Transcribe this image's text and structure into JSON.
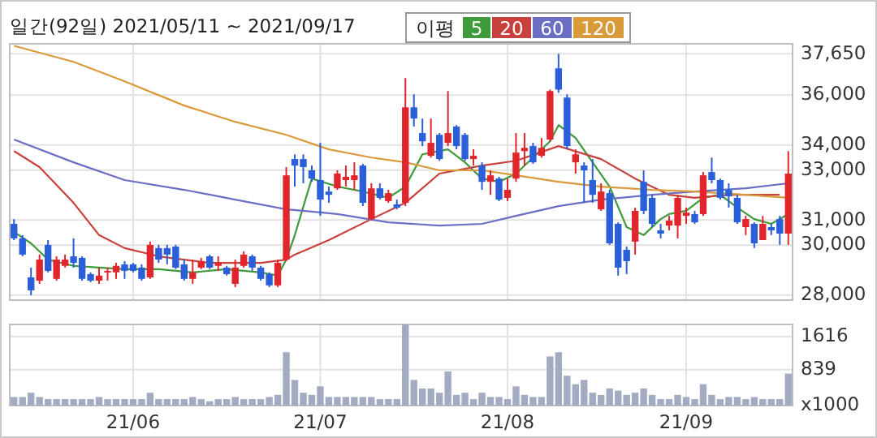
{
  "chart_data": [
    {
      "type": "candlestick",
      "title": "일간(92일) 2021/05/11 ~ 2021/09/17",
      "legend_title": "이평",
      "legend": "top right",
      "grid": true,
      "tick_labels": "y",
      "categories": [
        null,
        null,
        null,
        null,
        null,
        null,
        null,
        null,
        null,
        null,
        null,
        null,
        null,
        null,
        null,
        null,
        null,
        null,
        null,
        null,
        null,
        null,
        null,
        null,
        null,
        null,
        null,
        null,
        null,
        null,
        null,
        null,
        null,
        null,
        null,
        null,
        null,
        null,
        null,
        null,
        null,
        null,
        null,
        null,
        null,
        null,
        null,
        null,
        null,
        null,
        null,
        null,
        null,
        null,
        null,
        null,
        null,
        null,
        null,
        null,
        null,
        null,
        null,
        null,
        null,
        null,
        null,
        null,
        null,
        null,
        null,
        null,
        null,
        null,
        null,
        null,
        null,
        null,
        null,
        null,
        null,
        null,
        null,
        null,
        null,
        null,
        null,
        null,
        null,
        null,
        null,
        null
      ],
      "ylim": [
        27800,
        38050
      ],
      "yticks": [
        {
          "value": 37650,
          "label": "37,650"
        },
        {
          "value": 36000,
          "label": "36,000"
        },
        {
          "value": 34000,
          "label": "34,000"
        },
        {
          "value": 33000,
          "label": "33,000"
        },
        {
          "value": 31000,
          "label": "31,000"
        },
        {
          "value": 30000,
          "label": "30,000"
        },
        {
          "value": 28000,
          "label": "28,000"
        }
      ],
      "ohlc": [
        [
          30850,
          31040,
          30200,
          30270
        ],
        [
          30270,
          30400,
          29550,
          29620
        ],
        [
          28710,
          29100,
          28000,
          28190
        ],
        [
          28580,
          29620,
          28450,
          29420
        ],
        [
          30010,
          30200,
          28910,
          28970
        ],
        [
          28650,
          29550,
          28580,
          29420
        ],
        [
          29170,
          29620,
          29100,
          29420
        ],
        [
          29550,
          30270,
          29100,
          29290
        ],
        [
          29490,
          29550,
          28580,
          28650
        ],
        [
          28840,
          28910,
          28520,
          28580
        ],
        [
          28580,
          29100,
          28450,
          28780
        ],
        [
          28910,
          29100,
          28580,
          28970
        ],
        [
          28910,
          29290,
          28650,
          29170
        ],
        [
          29230,
          29360,
          28650,
          28970
        ],
        [
          29230,
          29290,
          28910,
          28970
        ],
        [
          29100,
          29230,
          28580,
          28650
        ],
        [
          28710,
          30140,
          28650,
          30010
        ],
        [
          29880,
          30010,
          29290,
          29420
        ],
        [
          29880,
          30010,
          29230,
          29620
        ],
        [
          29940,
          30010,
          29040,
          29100
        ],
        [
          29230,
          29420,
          28580,
          28650
        ],
        [
          28650,
          29420,
          28450,
          28910
        ],
        [
          29100,
          29490,
          29040,
          29360
        ],
        [
          29550,
          29620,
          29040,
          29100
        ],
        [
          29170,
          29550,
          28970,
          29290
        ],
        [
          29100,
          29170,
          28780,
          28840
        ],
        [
          28450,
          29420,
          28320,
          29100
        ],
        [
          29170,
          29750,
          29100,
          29620
        ],
        [
          29550,
          29620,
          28970,
          29100
        ],
        [
          29100,
          29170,
          28580,
          28650
        ],
        [
          28840,
          28910,
          28320,
          28390
        ],
        [
          28390,
          29420,
          28320,
          29290
        ],
        [
          29420,
          33120,
          29360,
          32790
        ],
        [
          33440,
          33630,
          32340,
          33180
        ],
        [
          33440,
          33630,
          32470,
          33120
        ],
        [
          32990,
          33180,
          32530,
          32660
        ],
        [
          32600,
          34090,
          31170,
          31820
        ],
        [
          32140,
          32340,
          31690,
          32010
        ],
        [
          32270,
          32990,
          32210,
          32860
        ],
        [
          32600,
          33180,
          32340,
          32730
        ],
        [
          32600,
          33310,
          32210,
          32790
        ],
        [
          33180,
          33250,
          31560,
          31690
        ],
        [
          31040,
          32470,
          30980,
          32270
        ],
        [
          32270,
          32470,
          31820,
          31890
        ],
        [
          31760,
          32210,
          31690,
          32080
        ],
        [
          31630,
          31820,
          31430,
          31500
        ],
        [
          31690,
          36680,
          31560,
          35510
        ],
        [
          35510,
          36030,
          34740,
          35060
        ],
        [
          34480,
          35060,
          33960,
          34150
        ],
        [
          33570,
          35060,
          33500,
          34090
        ],
        [
          34410,
          34480,
          33370,
          33440
        ],
        [
          34090,
          36160,
          33960,
          34480
        ],
        [
          34740,
          34800,
          33830,
          33960
        ],
        [
          34410,
          34480,
          33370,
          33440
        ],
        [
          33440,
          33830,
          33180,
          33570
        ],
        [
          33180,
          33310,
          32210,
          32530
        ],
        [
          32530,
          32990,
          32010,
          32790
        ],
        [
          32660,
          32730,
          31760,
          31820
        ],
        [
          31890,
          32660,
          31760,
          32210
        ],
        [
          32660,
          34480,
          32530,
          33700
        ],
        [
          33760,
          34480,
          33180,
          33890
        ],
        [
          33960,
          34090,
          33250,
          33310
        ],
        [
          33570,
          34280,
          33500,
          33890
        ],
        [
          34220,
          36220,
          34150,
          36160
        ],
        [
          37070,
          37650,
          36090,
          36220
        ],
        [
          35900,
          36030,
          33830,
          33960
        ],
        [
          33310,
          33830,
          32860,
          33630
        ],
        [
          33180,
          33310,
          31690,
          32990
        ],
        [
          32600,
          33440,
          31690,
          32010
        ],
        [
          31430,
          32470,
          31370,
          32140
        ],
        [
          32080,
          32210,
          30010,
          30070
        ],
        [
          30850,
          30910,
          28780,
          29100
        ],
        [
          29810,
          29940,
          28840,
          29360
        ],
        [
          30140,
          31500,
          29620,
          31370
        ],
        [
          32530,
          32990,
          31240,
          31370
        ],
        [
          31890,
          32010,
          30720,
          30850
        ],
        [
          30590,
          30850,
          30270,
          30460
        ],
        [
          30780,
          31170,
          30590,
          30980
        ],
        [
          30780,
          32010,
          30270,
          31890
        ],
        [
          31170,
          31500,
          30850,
          31300
        ],
        [
          31240,
          31370,
          30850,
          30910
        ],
        [
          31240,
          32920,
          31170,
          32790
        ],
        [
          32920,
          33500,
          32470,
          32600
        ],
        [
          32600,
          32660,
          31820,
          31890
        ],
        [
          32210,
          32470,
          31500,
          31950
        ],
        [
          31890,
          32010,
          30850,
          30910
        ],
        [
          30720,
          31170,
          30400,
          31040
        ],
        [
          30850,
          30910,
          29880,
          30070
        ],
        [
          30200,
          31170,
          30200,
          30850
        ],
        [
          30720,
          30850,
          30400,
          30590
        ],
        [
          31040,
          31170,
          30010,
          30460
        ],
        [
          30460,
          33760,
          30010,
          32860
        ]
      ],
      "colors": [
        "#2b5fd9",
        "#2b5fd9",
        "#2b5fd9",
        "#e0262c",
        "#2b5fd9",
        "#e0262c",
        "#e0262c",
        "#2b5fd9",
        "#2b5fd9",
        "#2b5fd9",
        "#e0262c",
        "#e0262c",
        "#e0262c",
        "#2b5fd9",
        "#2b5fd9",
        "#2b5fd9",
        "#e0262c",
        "#2b5fd9",
        "#2b5fd9",
        "#2b5fd9",
        "#2b5fd9",
        "#e0262c",
        "#e0262c",
        "#2b5fd9",
        "#e0262c",
        "#2b5fd9",
        "#e0262c",
        "#e0262c",
        "#2b5fd9",
        "#2b5fd9",
        "#2b5fd9",
        "#e0262c",
        "#e0262c",
        "#2b5fd9",
        "#2b5fd9",
        "#2b5fd9",
        "#2b5fd9",
        "#2b5fd9",
        "#e0262c",
        "#e0262c",
        "#e0262c",
        "#2b5fd9",
        "#e0262c",
        "#2b5fd9",
        "#e0262c",
        "#2b5fd9",
        "#e0262c",
        "#2b5fd9",
        "#2b5fd9",
        "#e0262c",
        "#2b5fd9",
        "#e0262c",
        "#2b5fd9",
        "#2b5fd9",
        "#e0262c",
        "#2b5fd9",
        "#e0262c",
        "#2b5fd9",
        "#e0262c",
        "#e0262c",
        "#e0262c",
        "#2b5fd9",
        "#e0262c",
        "#e0262c",
        "#2b5fd9",
        "#2b5fd9",
        "#e0262c",
        "#2b5fd9",
        "#2b5fd9",
        "#e0262c",
        "#2b5fd9",
        "#2b5fd9",
        "#2b5fd9",
        "#e0262c",
        "#2b5fd9",
        "#2b5fd9",
        "#2b5fd9",
        "#e0262c",
        "#e0262c",
        "#e0262c",
        "#2b5fd9",
        "#e0262c",
        "#2b5fd9",
        "#2b5fd9",
        "#2b5fd9",
        "#2b5fd9",
        "#e0262c",
        "#2b5fd9",
        "#e0262c",
        "#2b5fd9",
        "#2b5fd9",
        "#e0262c"
      ],
      "series": [
        {
          "name": "5",
          "type": "line",
          "color": "#3f9a3a",
          "values": [
            30530,
            null,
            30070,
            null,
            29420,
            null,
            null,
            29170,
            null,
            null,
            29100,
            null,
            null,
            29040,
            null,
            null,
            null,
            29040,
            null,
            null,
            null,
            28910,
            null,
            null,
            null,
            29040,
            null,
            null,
            null,
            28910,
            null,
            28780,
            29420,
            30400,
            null,
            32660,
            null,
            null,
            32340,
            null,
            null,
            32140,
            null,
            null,
            31890,
            null,
            32340,
            null,
            33630,
            null,
            null,
            33830,
            null,
            33310,
            null,
            32660,
            null,
            32530,
            null,
            32860,
            null,
            33500,
            null,
            34150,
            34800,
            null,
            34280,
            null,
            33310,
            null,
            32340,
            null,
            30720,
            null,
            30400,
            null,
            31040,
            31240,
            null,
            31370,
            null,
            31890,
            null,
            32010,
            null,
            31500,
            null,
            31040,
            null,
            30850,
            null,
            31240
          ]
        },
        {
          "name": "20",
          "type": "line",
          "color": "#c9413c",
          "values": [
            33760,
            null,
            null,
            33120,
            null,
            null,
            null,
            31690,
            null,
            null,
            30400,
            null,
            null,
            29880,
            null,
            null,
            null,
            29550,
            null,
            null,
            null,
            null,
            null,
            29290,
            null,
            null,
            null,
            null,
            null,
            29290,
            null,
            null,
            29420,
            29620,
            null,
            null,
            null,
            30200,
            null,
            null,
            null,
            null,
            31040,
            null,
            null,
            null,
            31690,
            null,
            null,
            null,
            32860,
            null,
            null,
            null,
            null,
            33180,
            null,
            null,
            null,
            33370,
            null,
            null,
            null,
            null,
            33960,
            null,
            null,
            null,
            null,
            33440,
            null,
            null,
            null,
            32660,
            null,
            null,
            null,
            32010,
            null,
            null,
            31890,
            null,
            null,
            null,
            32010,
            null,
            null,
            null,
            32010,
            null,
            32010,
            null
          ]
        },
        {
          "name": "60",
          "type": "line",
          "color": "#6a6fc4",
          "values": [
            34220,
            null,
            null,
            null,
            null,
            null,
            null,
            33310,
            null,
            null,
            null,
            null,
            null,
            32600,
            null,
            null,
            null,
            null,
            null,
            null,
            32210,
            null,
            null,
            null,
            null,
            null,
            31820,
            null,
            null,
            null,
            null,
            null,
            31430,
            null,
            31370,
            null,
            null,
            null,
            31240,
            null,
            null,
            null,
            null,
            null,
            30910,
            null,
            null,
            null,
            null,
            null,
            30780,
            null,
            null,
            null,
            null,
            30850,
            null,
            null,
            null,
            31170,
            null,
            null,
            null,
            null,
            31560,
            null,
            null,
            null,
            null,
            31820,
            null,
            null,
            null,
            null,
            null,
            32010,
            null,
            null,
            null,
            null,
            32140,
            null,
            null,
            null,
            null,
            null,
            32270,
            null,
            null,
            null,
            null,
            32470
          ]
        },
        {
          "name": "120",
          "type": "line",
          "color": "#d99a3a",
          "values": [
            37970,
            null,
            null,
            null,
            null,
            null,
            null,
            37330,
            null,
            null,
            null,
            null,
            null,
            36550,
            null,
            null,
            null,
            null,
            null,
            null,
            35580,
            null,
            null,
            null,
            null,
            null,
            34930,
            null,
            null,
            null,
            null,
            null,
            34410,
            null,
            null,
            null,
            null,
            33830,
            null,
            null,
            null,
            null,
            33500,
            null,
            null,
            null,
            33310,
            null,
            null,
            null,
            32990,
            null,
            null,
            null,
            null,
            32990,
            null,
            null,
            null,
            32790,
            null,
            null,
            null,
            null,
            32530,
            null,
            null,
            null,
            null,
            32340,
            null,
            null,
            null,
            null,
            null,
            32210,
            null,
            null,
            null,
            null,
            32140,
            null,
            null,
            null,
            null,
            null,
            32010,
            null,
            null,
            null,
            null,
            31890
          ]
        }
      ]
    },
    {
      "type": "bar",
      "grid": true,
      "color": "#a3abc2",
      "categories": [
        null,
        null,
        null,
        null,
        null,
        null,
        null,
        null,
        null,
        null,
        null,
        null,
        null,
        null,
        "21/06",
        null,
        null,
        null,
        null,
        null,
        null,
        null,
        null,
        null,
        null,
        null,
        null,
        null,
        null,
        null,
        null,
        null,
        null,
        null,
        null,
        null,
        "21/07",
        null,
        null,
        null,
        null,
        null,
        null,
        null,
        null,
        null,
        null,
        null,
        null,
        null,
        null,
        null,
        null,
        null,
        null,
        null,
        null,
        null,
        "21/08",
        null,
        null,
        null,
        null,
        null,
        null,
        null,
        null,
        null,
        null,
        null,
        null,
        null,
        null,
        null,
        null,
        null,
        null,
        null,
        null,
        "21/09",
        null,
        null,
        null,
        null,
        null,
        null,
        null,
        null,
        null,
        null,
        null,
        null
      ],
      "ylim": [
        0,
        1900
      ],
      "yticks": [
        {
          "value": 0,
          "label": "x1000"
        },
        839,
        1616
      ],
      "values": [
        200,
        200,
        300,
        200,
        150,
        150,
        150,
        150,
        150,
        150,
        200,
        150,
        150,
        150,
        150,
        150,
        300,
        150,
        150,
        150,
        150,
        200,
        150,
        100,
        150,
        150,
        200,
        150,
        150,
        150,
        200,
        250,
        1250,
        600,
        300,
        250,
        450,
        200,
        200,
        200,
        200,
        200,
        200,
        150,
        150,
        150,
        1900,
        600,
        400,
        400,
        300,
        800,
        250,
        300,
        150,
        300,
        200,
        200,
        150,
        450,
        250,
        200,
        200,
        1150,
        1250,
        700,
        500,
        600,
        300,
        250,
        400,
        350,
        250,
        300,
        400,
        250,
        150,
        150,
        250,
        200,
        150,
        500,
        250,
        150,
        200,
        200,
        150,
        200,
        150,
        150,
        150,
        750
      ]
    }
  ]
}
